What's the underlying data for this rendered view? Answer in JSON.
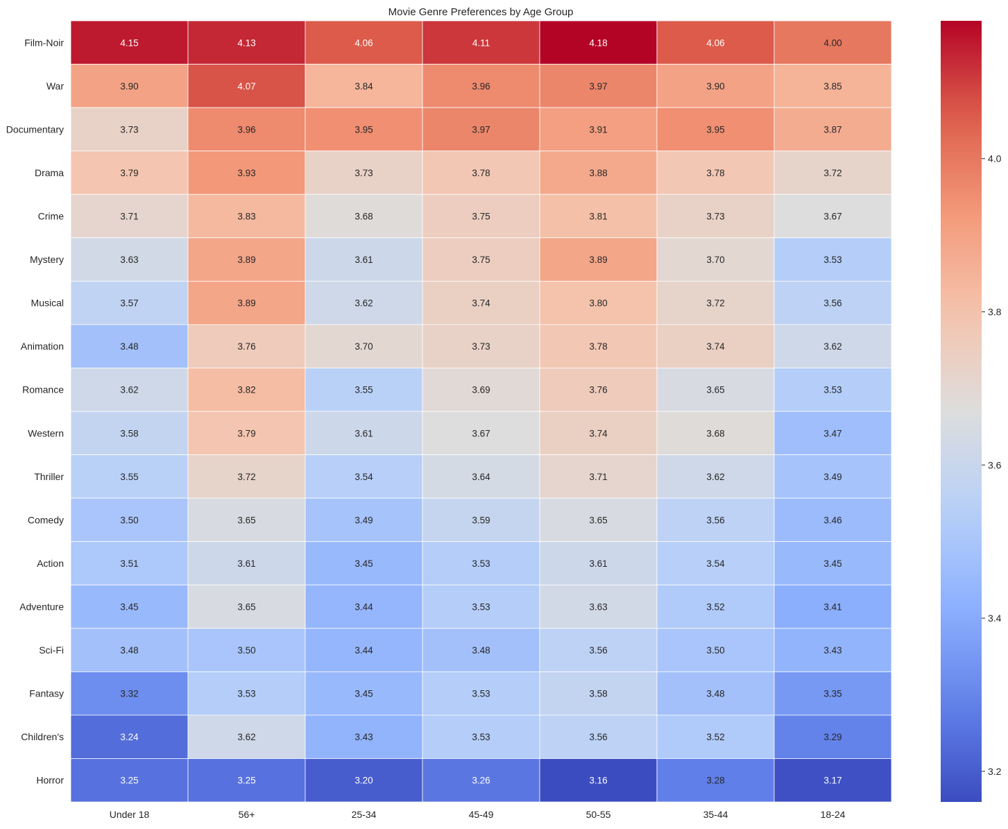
{
  "chart_data": {
    "type": "heatmap",
    "title": "Movie Genre Preferences by Age Group",
    "xlabel": "",
    "ylabel": "",
    "x_categories": [
      "Under 18",
      "56+",
      "25-34",
      "45-49",
      "50-55",
      "35-44",
      "18-24"
    ],
    "y_categories": [
      "Film-Noir",
      "War",
      "Documentary",
      "Drama",
      "Crime",
      "Mystery",
      "Musical",
      "Animation",
      "Romance",
      "Western",
      "Thriller",
      "Comedy",
      "Action",
      "Adventure",
      "Sci-Fi",
      "Fantasy",
      "Children's",
      "Horror"
    ],
    "values": [
      [
        4.15,
        4.13,
        4.06,
        4.11,
        4.18,
        4.06,
        4.0
      ],
      [
        3.9,
        4.07,
        3.84,
        3.96,
        3.97,
        3.9,
        3.85
      ],
      [
        3.73,
        3.96,
        3.95,
        3.97,
        3.91,
        3.95,
        3.87
      ],
      [
        3.79,
        3.93,
        3.73,
        3.78,
        3.88,
        3.78,
        3.72
      ],
      [
        3.71,
        3.83,
        3.68,
        3.75,
        3.81,
        3.73,
        3.67
      ],
      [
        3.63,
        3.89,
        3.61,
        3.75,
        3.89,
        3.7,
        3.53
      ],
      [
        3.57,
        3.89,
        3.62,
        3.74,
        3.8,
        3.72,
        3.56
      ],
      [
        3.48,
        3.76,
        3.7,
        3.73,
        3.78,
        3.74,
        3.62
      ],
      [
        3.62,
        3.82,
        3.55,
        3.69,
        3.76,
        3.65,
        3.53
      ],
      [
        3.58,
        3.79,
        3.61,
        3.67,
        3.74,
        3.68,
        3.47
      ],
      [
        3.55,
        3.72,
        3.54,
        3.64,
        3.71,
        3.62,
        3.49
      ],
      [
        3.5,
        3.65,
        3.49,
        3.59,
        3.65,
        3.56,
        3.46
      ],
      [
        3.51,
        3.61,
        3.45,
        3.53,
        3.61,
        3.54,
        3.45
      ],
      [
        3.45,
        3.65,
        3.44,
        3.53,
        3.63,
        3.52,
        3.41
      ],
      [
        3.48,
        3.5,
        3.44,
        3.48,
        3.56,
        3.5,
        3.43
      ],
      [
        3.32,
        3.53,
        3.45,
        3.53,
        3.58,
        3.48,
        3.35
      ],
      [
        3.24,
        3.62,
        3.43,
        3.53,
        3.56,
        3.52,
        3.29
      ],
      [
        3.25,
        3.25,
        3.2,
        3.26,
        3.16,
        3.28,
        3.17
      ]
    ],
    "value_format": "2 decimals",
    "colormap": "coolwarm",
    "vmin": 3.16,
    "vmax": 4.18,
    "colorbar_ticks": [
      3.2,
      3.4,
      3.6,
      3.8,
      4.0
    ],
    "colorbar_tick_labels": [
      "3.2",
      "3.4",
      "3.6",
      "3.8",
      "4.0"
    ],
    "grid_line_color": "#ffffff",
    "annotation_dark_text_color": "#262626",
    "annotation_light_text_color": "#ffffff"
  }
}
